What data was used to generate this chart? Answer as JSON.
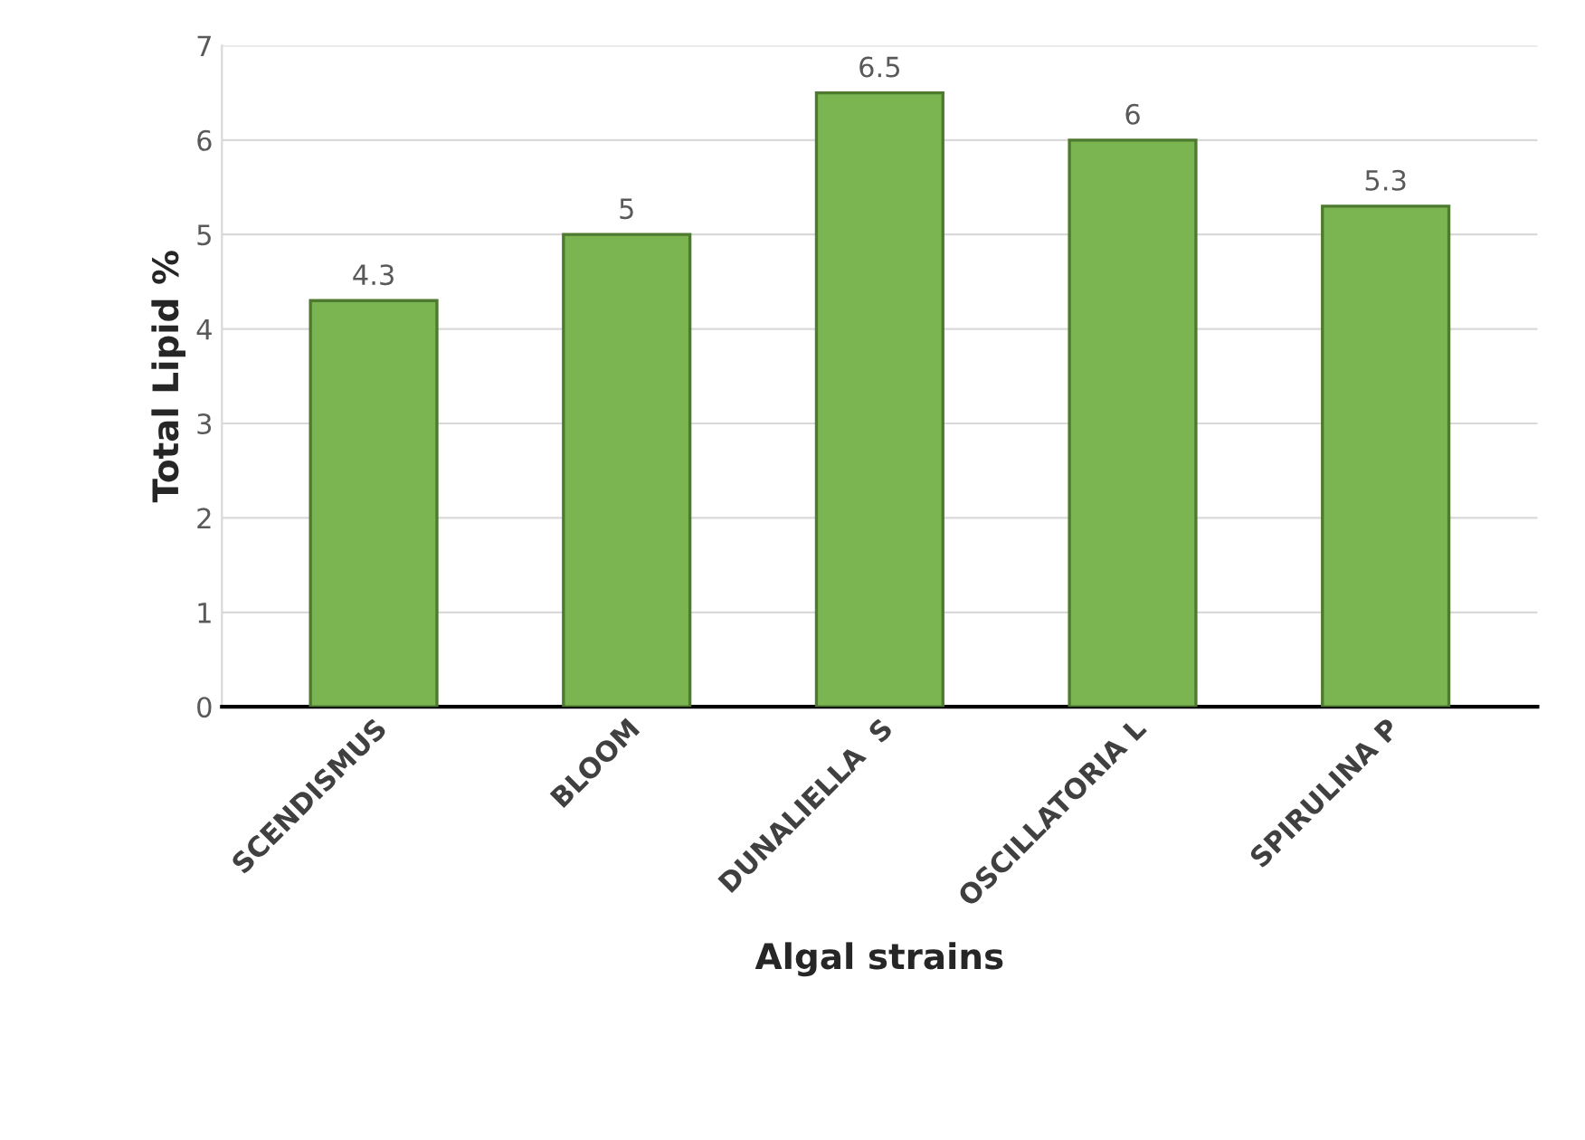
{
  "chart_data": {
    "type": "bar",
    "xlabel": "Algal strains",
    "ylabel": "Total Lipid %",
    "categories": [
      "SCENDISMUS",
      "BLOOM",
      "DUNALIELLA  S",
      "OSCILLATORIA L",
      "SPIRULINA P"
    ],
    "values": [
      4.3,
      5,
      6.5,
      6,
      5.3
    ],
    "color": "#7ab552",
    "ylim": [
      0,
      7
    ],
    "yticks": [
      0,
      1,
      2,
      3,
      4,
      5,
      6,
      7
    ],
    "grid": "y",
    "data_labels": true
  }
}
